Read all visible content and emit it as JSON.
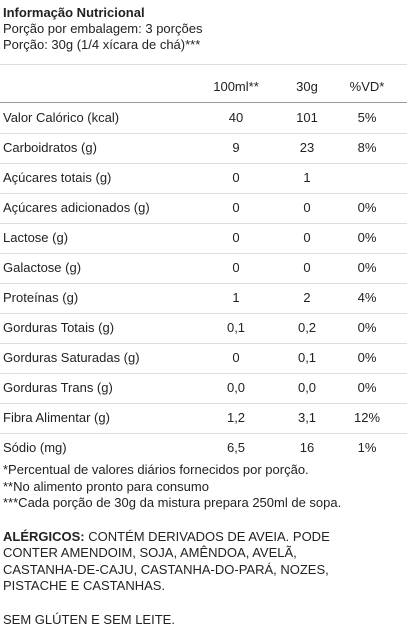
{
  "header": {
    "title": "Informação Nutricional",
    "servings": "Porção por embalagem: 3 porções",
    "portion": "Porção: 30g (1/4 xícara de chá)***"
  },
  "table": {
    "columns": [
      "100ml**",
      "30g",
      "%VD*"
    ],
    "rows": [
      [
        "Valor Calórico (kcal)",
        "40",
        "101",
        "5%"
      ],
      [
        "Carboidratos (g)",
        "9",
        "23",
        "8%"
      ],
      [
        "Açúcares totais (g)",
        "0",
        "1",
        ""
      ],
      [
        "Açúcares adicionados (g)",
        "0",
        "0",
        "0%"
      ],
      [
        "Lactose (g)",
        "0",
        "0",
        "0%"
      ],
      [
        "Galactose (g)",
        "0",
        "0",
        "0%"
      ],
      [
        "Proteínas (g)",
        "1",
        "2",
        "4%"
      ],
      [
        "Gorduras Totais (g)",
        "0,1",
        "0,2",
        "0%"
      ],
      [
        "Gorduras Saturadas (g)",
        "0",
        "0,1",
        "0%"
      ],
      [
        "Gorduras Trans (g)",
        "0,0",
        "0,0",
        "0%"
      ],
      [
        "Fibra Alimentar (g)",
        "1,2",
        "3,1",
        "12%"
      ],
      [
        "Sódio (mg)",
        "6,5",
        "16",
        "1%"
      ]
    ]
  },
  "footnotes": [
    "*Percentual de valores diários fornecidos por porção.",
    "**No alimento pronto para consumo",
    "***Cada porção de 30g da mistura prepara 250ml de sopa."
  ],
  "allergens": {
    "label": "ALÉRGICOS:",
    "lines": [
      " CONTÉM DERIVADOS DE AVEIA. PODE",
      "CONTER AMENDOIM, SOJA, AMÊNDOA, AVELÃ,",
      "CASTANHA-DE-CAJU, CASTANHA-DO-PARÁ, NOZES,",
      "PISTACHE E CASTANHAS."
    ]
  },
  "notice": "SEM GLÚTEN E SEM LEITE."
}
